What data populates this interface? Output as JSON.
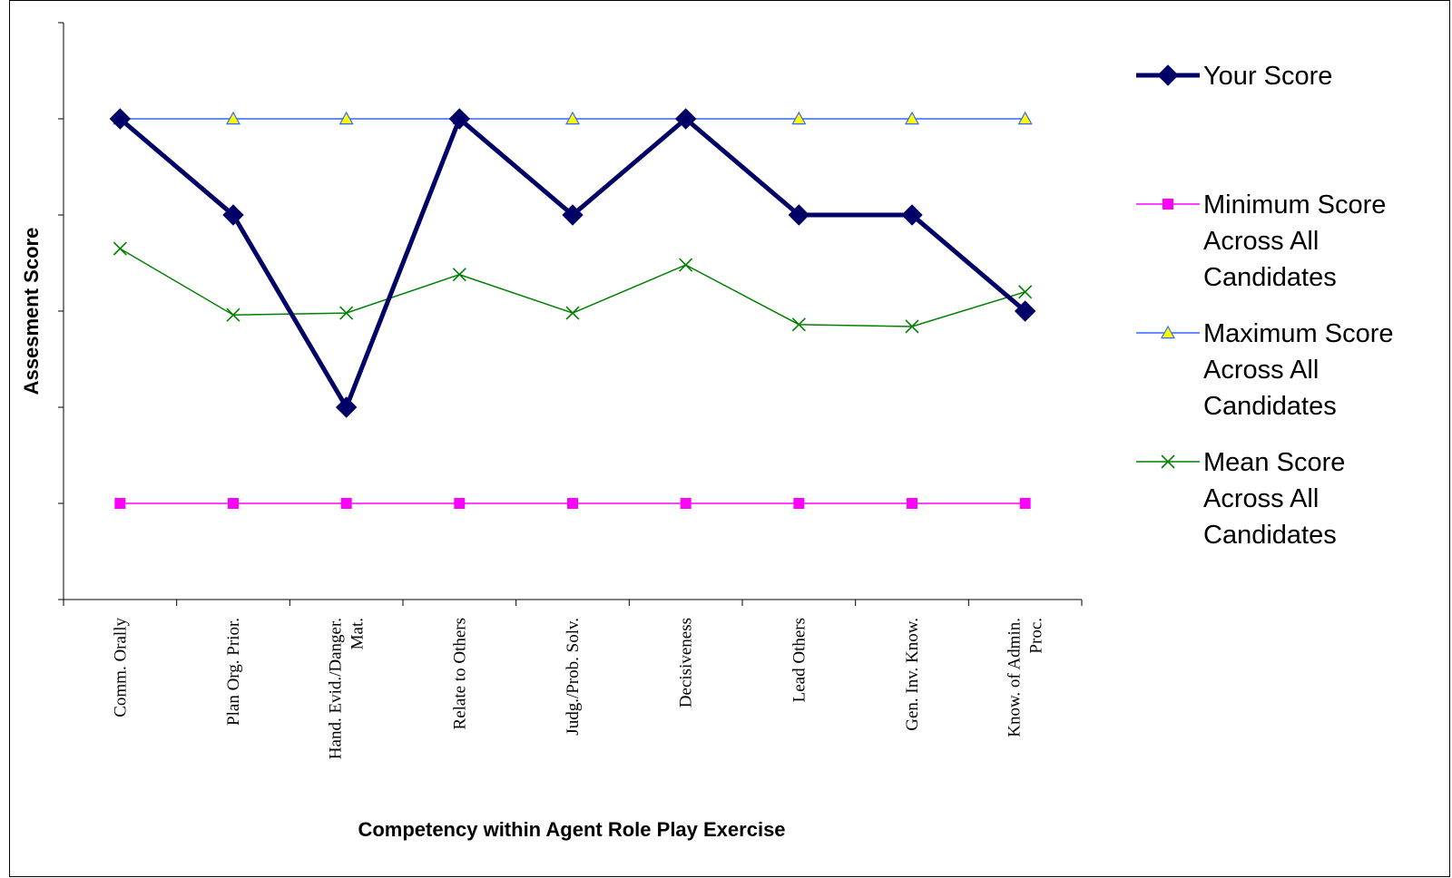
{
  "chart_data": {
    "type": "line",
    "title": "",
    "xlabel": "Competency within Agent Role Play Exercise",
    "ylabel": "Assesment Score",
    "ylim": [
      0,
      6
    ],
    "ytick_count": 7,
    "y_tick_labels_shown": false,
    "grid": false,
    "legend_position": "right",
    "categories": [
      [
        "Comm. Orally"
      ],
      [
        "Plan Org. Prior."
      ],
      [
        "Hand. Evid./Danger.",
        "Mat."
      ],
      [
        "Relate to Others"
      ],
      [
        "Judg./Prob. Solv."
      ],
      [
        "Decisiveness"
      ],
      [
        "Lead Others"
      ],
      [
        "Gen. Inv. Know."
      ],
      [
        "Know. of Admin.",
        "Proc."
      ]
    ],
    "series": [
      {
        "key": "your",
        "name": [
          "Your Score"
        ],
        "values": [
          5,
          4,
          2,
          5,
          4,
          5,
          4,
          4,
          3
        ],
        "color": "#000066",
        "marker": "diamond",
        "line_weight": "heavy"
      },
      {
        "key": "min",
        "name": [
          "Minimum Score",
          "Across All",
          "Candidates"
        ],
        "values": [
          1,
          1,
          1,
          1,
          1,
          1,
          1,
          1,
          1
        ],
        "color": "#FF00FF",
        "marker": "square",
        "line_weight": "thin"
      },
      {
        "key": "max",
        "name": [
          "Maximum Score",
          "Across All",
          "Candidates"
        ],
        "values": [
          5,
          5,
          5,
          5,
          5,
          5,
          5,
          5,
          5
        ],
        "color": "#3366FF",
        "marker_fill": "#FFFF00",
        "marker": "triangle",
        "line_weight": "thin"
      },
      {
        "key": "mean",
        "name": [
          "Mean Score",
          "Across All",
          "Candidates"
        ],
        "values": [
          3.65,
          2.96,
          2.98,
          3.38,
          2.98,
          3.48,
          2.86,
          2.84,
          3.2
        ],
        "color": "#008000",
        "marker": "x",
        "line_weight": "thin"
      }
    ]
  }
}
